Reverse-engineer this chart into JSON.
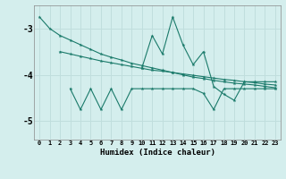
{
  "background_color": "#d4eeed",
  "grid_color": "#c0dedd",
  "line_color": "#1a7a6a",
  "xlabel": "Humidex (Indice chaleur)",
  "ylim": [
    -5.4,
    -2.5
  ],
  "xlim": [
    -0.5,
    23.5
  ],
  "yticks": [
    -5,
    -4,
    -3
  ],
  "xticks": [
    0,
    1,
    2,
    3,
    4,
    5,
    6,
    7,
    8,
    9,
    10,
    11,
    12,
    13,
    14,
    15,
    16,
    17,
    18,
    19,
    20,
    21,
    22,
    23
  ],
  "line1_x": [
    0,
    1,
    2,
    3,
    4,
    5,
    6,
    7,
    8,
    9,
    10,
    11,
    12,
    13,
    14,
    15,
    16,
    17,
    18,
    19,
    20,
    21,
    22,
    23
  ],
  "line1_y": [
    -2.75,
    -3.0,
    -3.15,
    -3.25,
    -3.35,
    -3.45,
    -3.55,
    -3.62,
    -3.68,
    -3.75,
    -3.8,
    -3.85,
    -3.9,
    -3.95,
    -4.0,
    -4.05,
    -4.08,
    -4.12,
    -4.15,
    -4.18,
    -4.2,
    -4.22,
    -4.25,
    -4.28
  ],
  "line2_x": [
    2,
    3,
    4,
    5,
    6,
    7,
    8,
    9,
    10,
    11,
    12,
    13,
    14,
    15,
    16,
    17,
    18,
    19,
    20,
    21,
    22,
    23
  ],
  "line2_y": [
    -3.5,
    -3.55,
    -3.6,
    -3.65,
    -3.7,
    -3.74,
    -3.78,
    -3.82,
    -3.86,
    -3.9,
    -3.92,
    -3.95,
    -3.98,
    -4.01,
    -4.04,
    -4.07,
    -4.1,
    -4.12,
    -4.15,
    -4.17,
    -4.2,
    -4.22
  ],
  "line3_x": [
    10,
    11,
    12,
    13,
    14,
    15,
    16,
    17,
    18,
    19,
    20,
    21,
    22,
    23
  ],
  "line3_y": [
    -3.85,
    -3.15,
    -3.55,
    -2.75,
    -3.35,
    -3.78,
    -3.5,
    -4.25,
    -4.42,
    -4.55,
    -4.15,
    -4.15,
    -4.15,
    -4.15
  ],
  "line4_x": [
    3,
    4,
    5,
    6,
    7,
    8,
    9,
    10,
    11,
    12,
    13,
    14,
    15,
    16,
    17,
    18,
    19,
    20,
    21,
    22,
    23
  ],
  "line4_y": [
    -4.3,
    -4.75,
    -4.3,
    -4.75,
    -4.3,
    -4.75,
    -4.3,
    -4.3,
    -4.3,
    -4.3,
    -4.3,
    -4.3,
    -4.3,
    -4.4,
    -4.75,
    -4.3,
    -4.3,
    -4.3,
    -4.3,
    -4.3,
    -4.3
  ]
}
